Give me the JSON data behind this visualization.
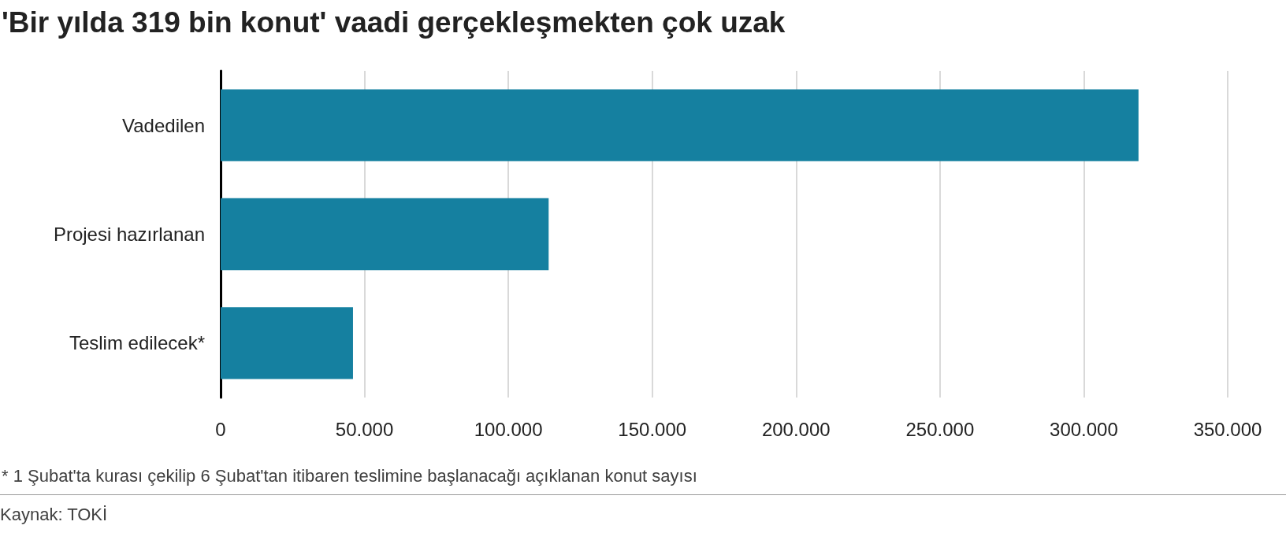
{
  "chart_data": {
    "type": "bar",
    "orientation": "horizontal",
    "title": "'Bir yılda 319 bin konut' vaadi gerçekleşmekten çok uzak",
    "categories": [
      "Vadedilen",
      "Projesi hazırlanan",
      "Teslim edilecek*"
    ],
    "values": [
      319000,
      114000,
      46000
    ],
    "color": "#1580a0",
    "xlim": [
      0,
      350000
    ],
    "xticks": [
      0,
      {
        "value": 50000,
        "label": "50.000"
      },
      {
        "value": 100000,
        "label": "100.000"
      },
      {
        "value": 150000,
        "label": "150.000"
      },
      {
        "value": 200000,
        "label": "200.000"
      },
      {
        "value": 250000,
        "label": "250.000"
      },
      {
        "value": 300000,
        "label": "300.000"
      },
      {
        "value": 350000,
        "label": "350.000"
      }
    ],
    "grid": "x",
    "annotations": [
      "* 1 Şubat'ta kurası çekilip 6 Şubat'tan itibaren teslimine başlanacağı açıklanan konut sayısı",
      "Kaynak: TOKİ"
    ]
  }
}
